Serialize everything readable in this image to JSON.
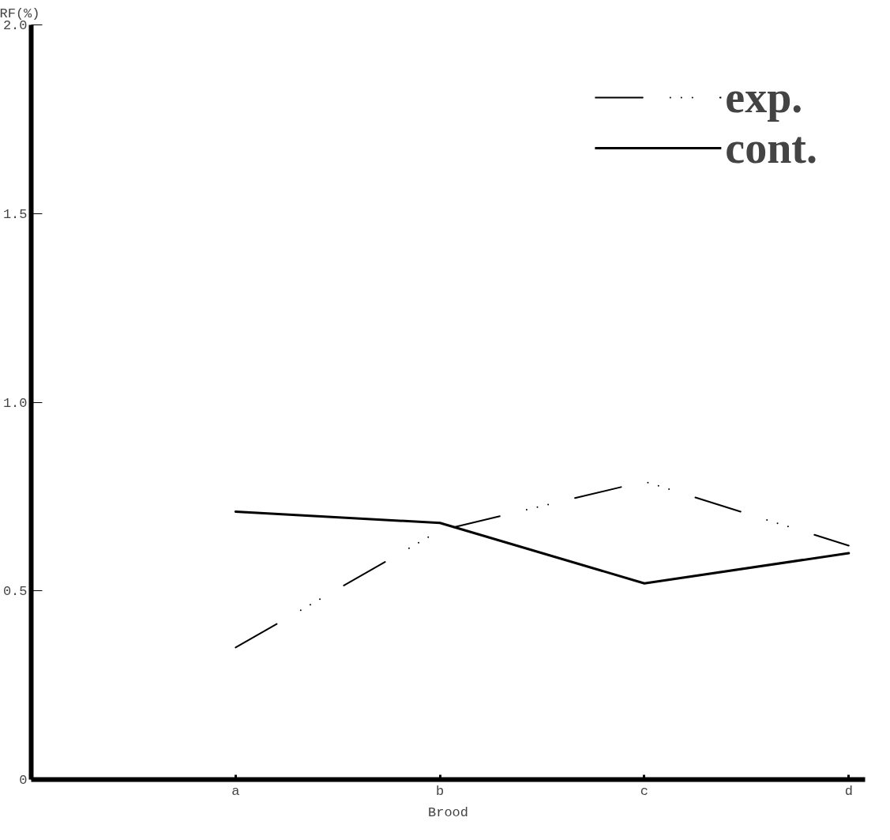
{
  "chart_data": {
    "type": "line",
    "ylabel": "RF(%)",
    "xlabel": "Brood",
    "categories": [
      "a",
      "b",
      "c",
      "d"
    ],
    "series": [
      {
        "name": "exp.",
        "color": "#000000",
        "line_style": "dashed",
        "values": [
          0.35,
          0.66,
          0.79,
          0.62
        ]
      },
      {
        "name": "cont.",
        "color": "#000000",
        "line_style": "solid",
        "values": [
          0.71,
          0.68,
          0.52,
          0.6
        ]
      }
    ],
    "ylim": [
      0,
      2.0
    ],
    "yticks": [
      {
        "value": 0,
        "label": "0"
      },
      {
        "value": 0.5,
        "label": "0.5"
      },
      {
        "value": 1.0,
        "label": "1.0"
      },
      {
        "value": 1.5,
        "label": "1.5"
      },
      {
        "value": 2.0,
        "label": "2.0"
      }
    ],
    "legend": "top right",
    "grid": false
  }
}
